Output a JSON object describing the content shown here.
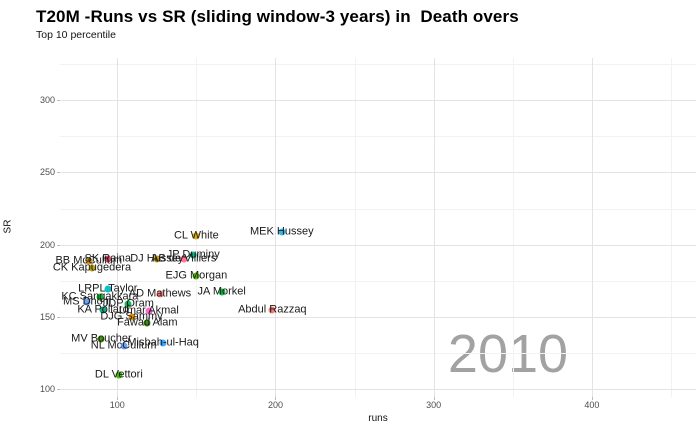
{
  "title": "T20M -Runs vs SR (sliding window-3 years) in  Death overs",
  "subtitle": "Top 10 percentile",
  "watermark": "2010",
  "chart_data": {
    "type": "scatter",
    "title": "T20M -Runs vs SR (sliding window-3 years) in  Death overs",
    "subtitle": "Top 10 percentile",
    "xlabel": "runs",
    "ylabel": "SR",
    "xlim": [
      63.8,
      465.8
    ],
    "ylim": [
      94.5,
      329.2
    ],
    "x_ticks": [
      100,
      200,
      300,
      400
    ],
    "x_minor_ticks": [
      150,
      250,
      350,
      450
    ],
    "y_ticks": [
      100,
      150,
      200,
      250,
      300
    ],
    "y_minor_ticks": [
      125,
      175,
      225,
      275,
      325
    ],
    "grid": true,
    "legend": false,
    "annotation_year": "2010",
    "points": [
      {
        "name": "BB McCullum",
        "runs": 82,
        "sr": 189,
        "color": "#d89000"
      },
      {
        "name": "SK Raina",
        "runs": 94,
        "sr": 190,
        "color": "#e8486b"
      },
      {
        "name": "DJ Hussey",
        "runs": 125,
        "sr": 190,
        "color": "#c49a00"
      },
      {
        "name": "AB de Villiers",
        "runs": 142,
        "sr": 190,
        "color": "#ff6c91"
      },
      {
        "name": "JP Duminy",
        "runs": 148,
        "sr": 193,
        "color": "#00c08d"
      },
      {
        "name": "CL White",
        "runs": 150,
        "sr": 206,
        "color": "#dba800"
      },
      {
        "name": "MEK Hussey",
        "runs": 204,
        "sr": 209,
        "color": "#29b3e8"
      },
      {
        "name": "CK Kapugedera",
        "runs": 84,
        "sr": 184,
        "color": "#b79f00"
      },
      {
        "name": "EJG Morgan",
        "runs": 150,
        "sr": 178,
        "color": "#4cb400"
      },
      {
        "name": "LRPL Taylor",
        "runs": 94,
        "sr": 169,
        "color": "#00bfc4"
      },
      {
        "name": "AD Mathews",
        "runs": 127,
        "sr": 166,
        "color": "#f8766d"
      },
      {
        "name": "JA Morkel",
        "runs": 166,
        "sr": 167,
        "color": "#00ba38"
      },
      {
        "name": "KC Sangakkara",
        "runs": 89,
        "sr": 164,
        "color": "#00b81f"
      },
      {
        "name": "MS Dhoni",
        "runs": 81,
        "sr": 160,
        "color": "#619cff"
      },
      {
        "name": "JDP Oram",
        "runs": 107,
        "sr": 159,
        "color": "#00b64e"
      },
      {
        "name": "KA Pollard",
        "runs": 91,
        "sr": 155,
        "color": "#00a87e"
      },
      {
        "name": "Umar Akmal",
        "runs": 120,
        "sr": 154,
        "color": "#ff61cc"
      },
      {
        "name": "DJG Sammy",
        "runs": 109,
        "sr": 150,
        "color": "#de8c00"
      },
      {
        "name": "Fawad Alam",
        "runs": 119,
        "sr": 146,
        "color": "#338a00"
      },
      {
        "name": "Abdul Razzaq",
        "runs": 198,
        "sr": 155,
        "color": "#f8766d"
      },
      {
        "name": "MV Boucher",
        "runs": 90,
        "sr": 135,
        "color": "#3d8e00"
      },
      {
        "name": "NL McCullum",
        "runs": 104,
        "sr": 130,
        "color": "#619cff"
      },
      {
        "name": "Misbah-ul-Haq",
        "runs": 129,
        "sr": 132,
        "color": "#35a2ff"
      },
      {
        "name": "DL Vettori",
        "runs": 101,
        "sr": 110,
        "color": "#39b600"
      }
    ]
  },
  "colors": {
    "background": "#ffffff",
    "grid_major": "#e3e3e3",
    "grid_minor": "#f2f2f2",
    "axis_text": "#4d4d4d",
    "point_label_text": "#1a1a1a",
    "watermark": "#a2a2a2"
  }
}
